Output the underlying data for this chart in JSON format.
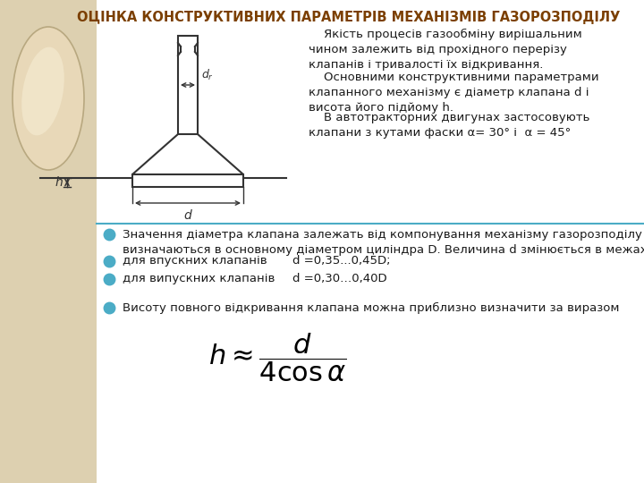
{
  "title": "ОЦІНКА КОНСТРУКТИВНИХ ПАРАМЕТРІВ МЕХАНІЗМІВ ГАЗОРОЗПОДІЛУ",
  "title_color": "#7B3F00",
  "bg_color": "#FFFFFF",
  "left_bg_color": "#DDD0B0",
  "ellipse_color": "#C8B896",
  "text_right1": "    Якість процесів газообміну вирішальним\nчином залежить від прохідного перерізу\nклапанів і тривалості їх відкривання.",
  "text_right2": "    Основними конструктивними параметрами\nклапанного механізму є діаметр клапана d і\nвисота його підйому h.",
  "text_right3": "    В автотракторних двигунах застосовують\nклапани з кутами фаски α= 30° і  α = 45°",
  "bullet1": "Значення діаметра клапана залежать від компонування механізму газорозподілу і\nвизначаються в основному діаметром циліндра D. Величина d змінюється в межах:",
  "bullet2_label": "для впускних клапанів",
  "bullet2_value": "d =0,35...0,45D;",
  "bullet3_label": "для випускних клапанів",
  "bullet3_value": "d =0,30…0,40D",
  "bullet4": "Висоту повного відкривання клапана можна приблизно визначити за виразом",
  "bullet_color": "#4BACC6",
  "line_color": "#4BACC6",
  "text_color_body": "#1F3864",
  "diagram_line_color": "#333333"
}
